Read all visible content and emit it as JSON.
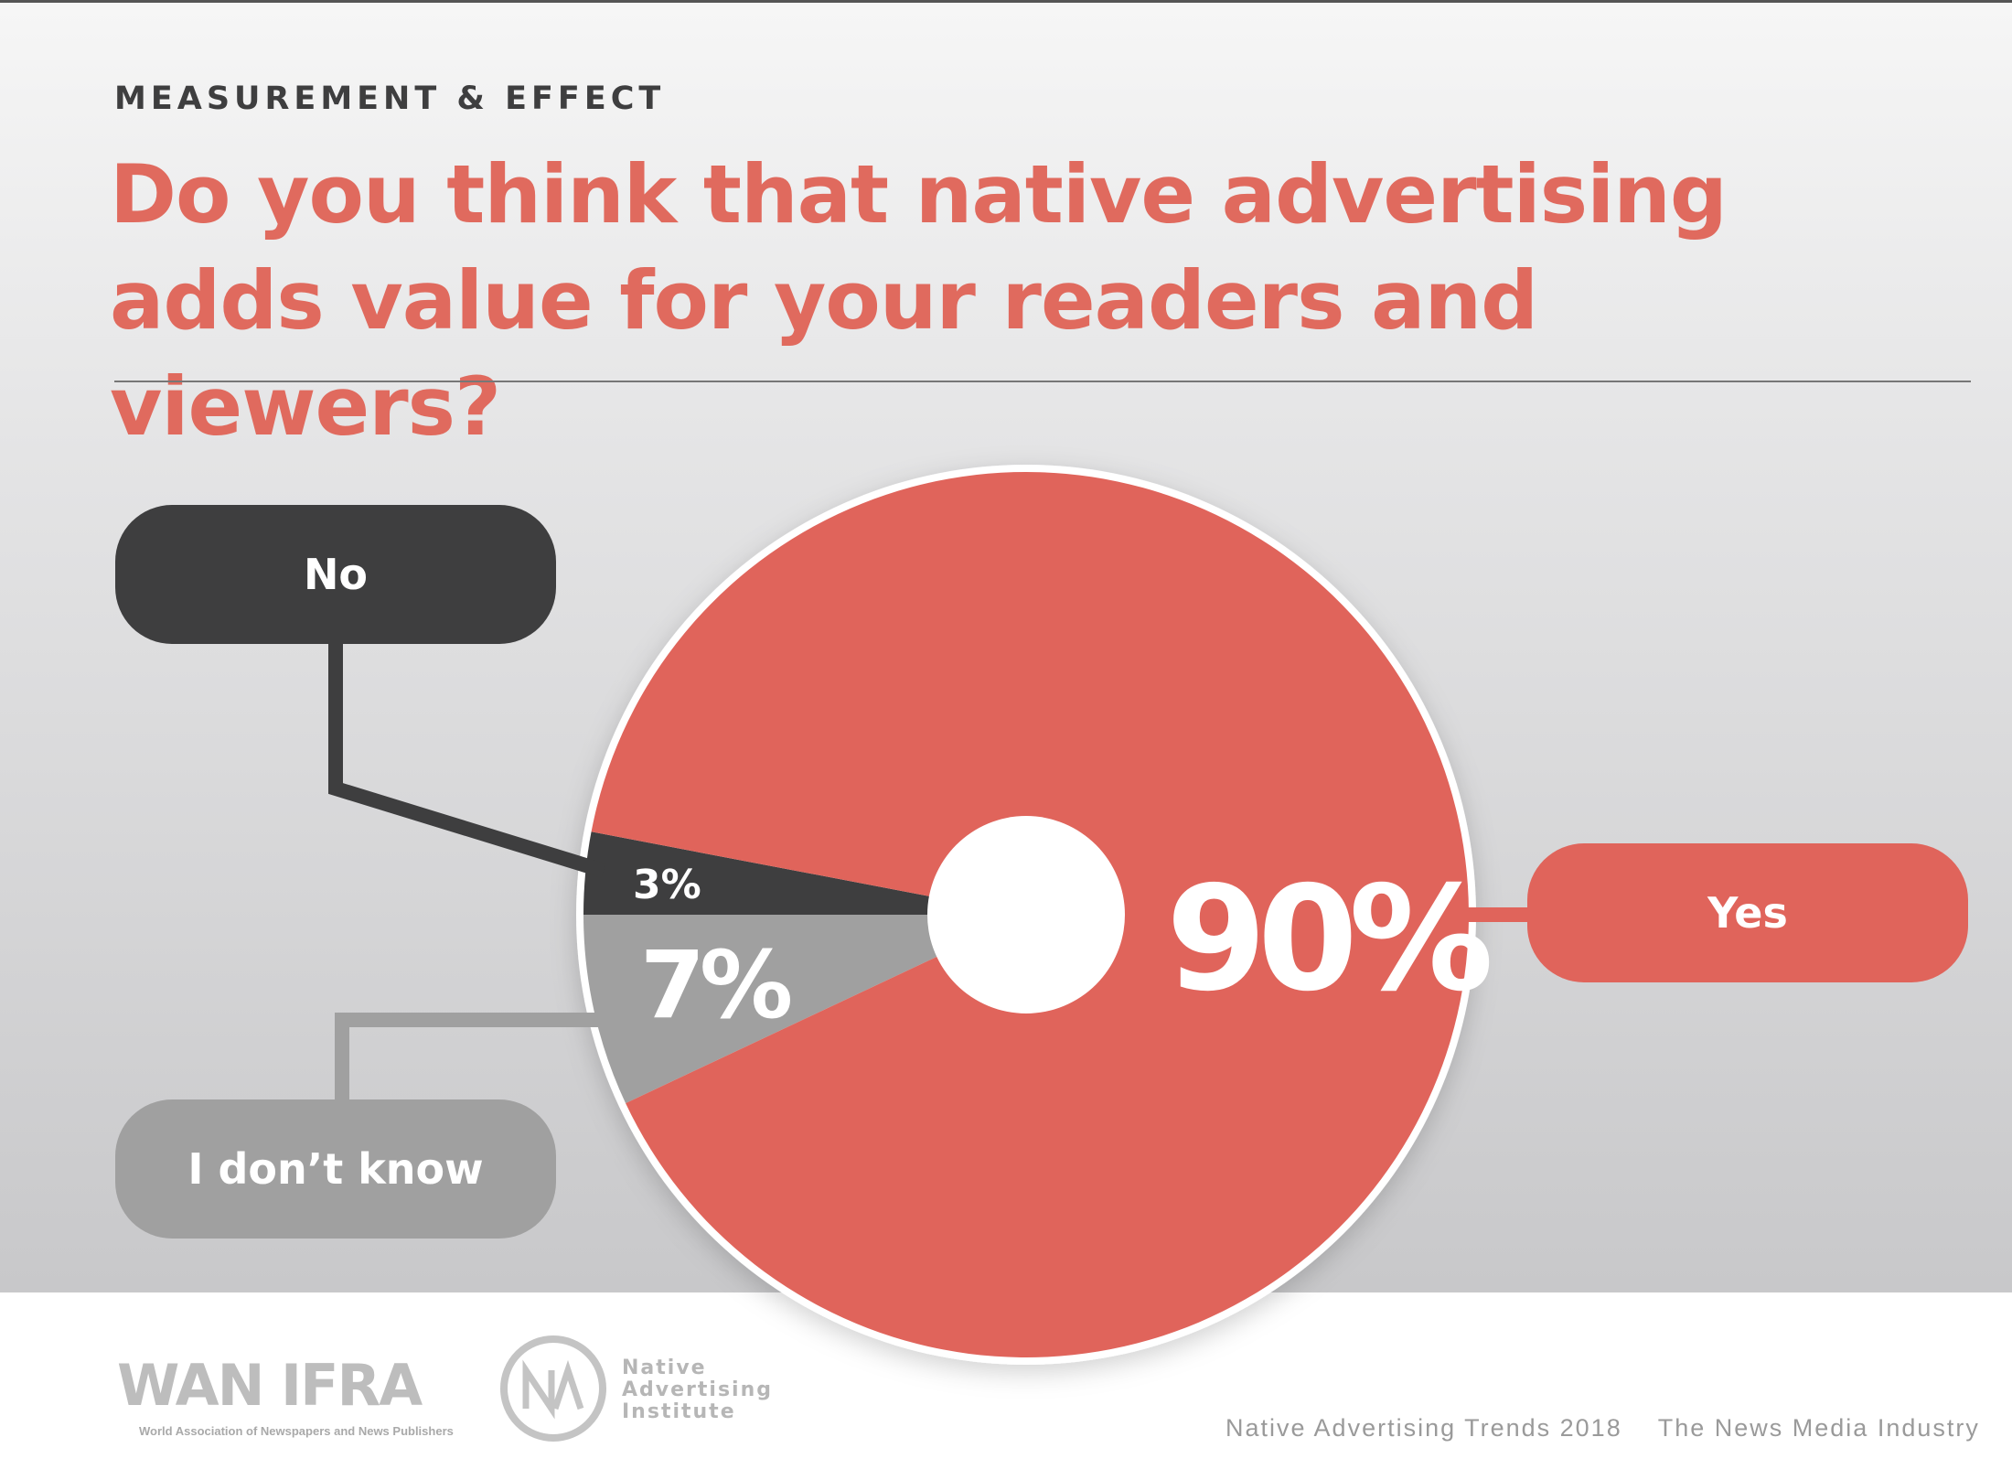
{
  "header": {
    "eyebrow": "MEASUREMENT & EFFECT",
    "title": "Do you think that native advertising adds value for your readers and viewers?"
  },
  "chart_data": {
    "type": "pie",
    "categories": [
      "Yes",
      "No",
      "I don’t know"
    ],
    "values": [
      90,
      3,
      7
    ],
    "labels": [
      "90%",
      "3%",
      "7%"
    ],
    "colors": [
      "#e0645b",
      "#3e3e3f",
      "#a0a0a0"
    ]
  },
  "footer": {
    "logo1": "WAN IFRA",
    "logo1_sub": "World Association of Newspapers and News Publishers",
    "logo2_lines": [
      "Native",
      "Advertising",
      "Institute"
    ],
    "report": "Native Advertising Trends 2018",
    "industry": "The News Media Industry"
  }
}
